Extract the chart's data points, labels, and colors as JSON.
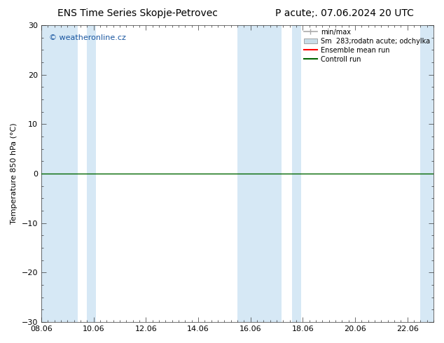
{
  "title_left": "ENS Time Series Skopje-Petrovec",
  "title_right": "P acute;. 07.06.2024 20 UTC",
  "ylabel": "Temperature 850 hPa (°C)",
  "ylim": [
    -30,
    30
  ],
  "yticks": [
    -30,
    -20,
    -10,
    0,
    10,
    20,
    30
  ],
  "xlim": [
    0,
    15
  ],
  "xtick_labels": [
    "08.06",
    "10.06",
    "12.06",
    "14.06",
    "16.06",
    "18.06",
    "20.06",
    "22.06"
  ],
  "xtick_positions": [
    0,
    2,
    4,
    6,
    8,
    10,
    12,
    14
  ],
  "background_color": "#ffffff",
  "plot_bg_color": "#ffffff",
  "band_color": "#d6e8f5",
  "band_x_positions": [
    0.0,
    1.5,
    7.5,
    9.0,
    14.5
  ],
  "band_widths": [
    1.5,
    0.5,
    1.5,
    0.5,
    0.5
  ],
  "watermark": "© weatheronline.cz",
  "watermark_color": "#1a56a0",
  "zero_line_color": "#006600",
  "legend_minmax_color": "#aaaaaa",
  "legend_std_color": "#c8dce8",
  "legend_mean_color": "#ff0000",
  "legend_ctrl_color": "#006600",
  "title_fontsize": 10,
  "axis_fontsize": 8,
  "tick_fontsize": 8,
  "watermark_fontsize": 8
}
